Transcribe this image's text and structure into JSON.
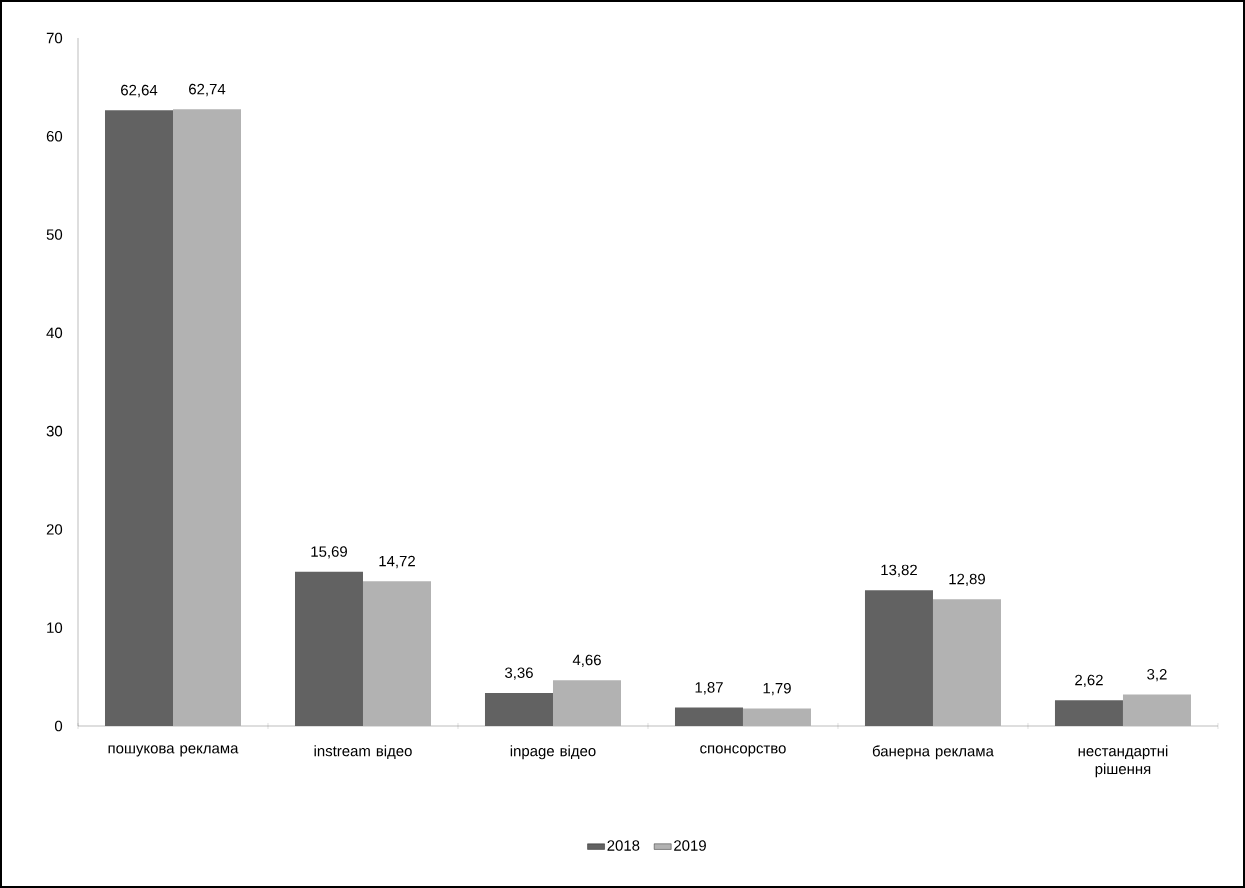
{
  "chart_data": {
    "type": "bar",
    "categories": [
      "пошукова реклама",
      "instream відео",
      "inpage відео",
      "спонсорство",
      "банерна реклама",
      "нестандартні рішення"
    ],
    "series": [
      {
        "name": "2018",
        "color": "#626262",
        "values": [
          62.64,
          15.69,
          3.36,
          1.87,
          13.82,
          2.62
        ],
        "value_labels": [
          "62,64",
          "15,69",
          "3,36",
          "1,87",
          "13,82",
          "2,62"
        ]
      },
      {
        "name": "2019",
        "color": "#b2b2b2",
        "values": [
          62.74,
          14.72,
          4.66,
          1.79,
          12.89,
          3.2
        ],
        "value_labels": [
          "62,74",
          "14,72",
          "4,66",
          "1,79",
          "12,89",
          "3,2"
        ]
      }
    ],
    "ylim": [
      0,
      70
    ],
    "yticks": [
      0,
      10,
      20,
      30,
      40,
      50,
      60,
      70
    ],
    "legend": "bottom"
  }
}
